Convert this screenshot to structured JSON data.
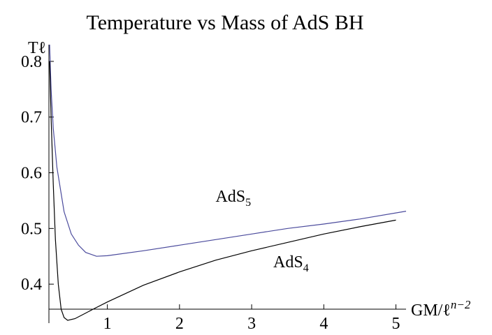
{
  "chart_data": {
    "type": "line",
    "title": "Temperature vs Mass of AdS BH",
    "y_label": "Tℓ",
    "x_label": "GM/ℓ",
    "x_label_sup": "n−2",
    "xlim": [
      0.19,
      5.14
    ],
    "ylim": [
      0.33,
      0.83
    ],
    "xticks": [
      1,
      2,
      3,
      4,
      5
    ],
    "yticks": [
      0.4,
      0.5,
      0.6,
      0.7,
      0.8
    ],
    "axes_origin": [
      0.19,
      0.355
    ],
    "series": [
      {
        "name": "AdS",
        "subscript": "5",
        "color": "#4a4a9c",
        "x": [
          0.2,
          0.22,
          0.25,
          0.3,
          0.4,
          0.5,
          0.6,
          0.7,
          0.85,
          1,
          1.5,
          2,
          2.5,
          3,
          3.5,
          4,
          4.5,
          5.14
        ],
        "values": [
          0.83,
          0.75,
          0.68,
          0.61,
          0.53,
          0.49,
          0.47,
          0.457,
          0.45,
          0.451,
          0.46,
          0.47,
          0.48,
          0.49,
          0.5,
          0.508,
          0.517,
          0.531
        ]
      },
      {
        "name": "AdS",
        "subscript": "4",
        "color": "#000000",
        "x": [
          0.2,
          0.22,
          0.25,
          0.28,
          0.32,
          0.36,
          0.4,
          0.45,
          0.55,
          0.7,
          0.8,
          1,
          1.5,
          2,
          2.5,
          3,
          3.5,
          4,
          4.5,
          5
        ],
        "values": [
          0.8,
          0.7,
          0.58,
          0.48,
          0.4,
          0.355,
          0.34,
          0.335,
          0.338,
          0.348,
          0.355,
          0.368,
          0.398,
          0.422,
          0.443,
          0.46,
          0.475,
          0.49,
          0.503,
          0.515
        ]
      }
    ]
  }
}
